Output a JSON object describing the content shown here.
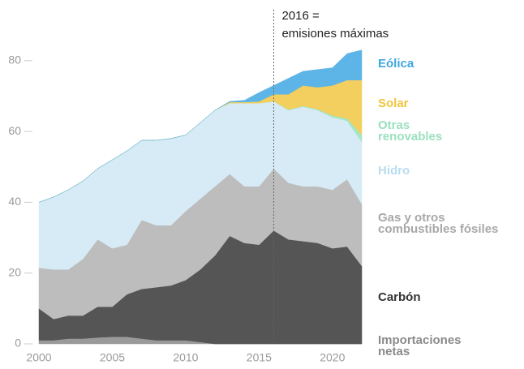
{
  "chart_data": {
    "type": "stacked_area",
    "x": [
      2000,
      2001,
      2002,
      2003,
      2004,
      2005,
      2006,
      2007,
      2008,
      2009,
      2010,
      2011,
      2012,
      2013,
      2014,
      2015,
      2016,
      2017,
      2018,
      2019,
      2020,
      2021,
      2022
    ],
    "xlim": [
      2000,
      2022
    ],
    "xticks": [
      2000,
      2005,
      2010,
      2015,
      2020
    ],
    "ylim": [
      0,
      85
    ],
    "yticks": [
      0,
      20,
      40,
      60,
      80
    ],
    "series": [
      {
        "name": "Importaciones netas",
        "color": "#9a9a9a",
        "label_color": "#8a8a8a",
        "values": [
          1,
          1,
          1.5,
          1.5,
          1.8,
          2,
          2,
          1.5,
          1,
          1,
          1,
          0.5,
          0,
          0,
          0,
          0,
          0,
          0,
          0,
          0,
          0,
          0,
          0
        ]
      },
      {
        "name": "Carbón",
        "color": "#555555",
        "label_color": "#333333",
        "values": [
          9,
          6,
          6.5,
          6.5,
          8.7,
          8.5,
          12,
          14,
          15,
          15.5,
          17,
          20.5,
          25,
          30.5,
          28.5,
          28,
          32,
          29.5,
          29,
          28.5,
          27,
          27.5,
          22
        ]
      },
      {
        "name": "Gas y otros combustibles fósiles",
        "color": "#bdbdbd",
        "label_color": "#a8a8a8",
        "values": [
          11.5,
          14,
          13,
          16,
          19,
          16.5,
          14,
          19.5,
          17.5,
          17,
          19.5,
          20,
          19.5,
          17.5,
          16,
          16.5,
          17.5,
          16,
          15.5,
          16,
          16.5,
          19,
          17.5
        ]
      },
      {
        "name": "Hidro",
        "color": "#d6ebf6",
        "label_color": "#b9dcf0",
        "values": [
          18.5,
          20.5,
          22.5,
          22,
          20,
          25,
          26.5,
          22.5,
          24,
          24.5,
          21.5,
          21.5,
          21.5,
          20,
          23.5,
          23.5,
          19,
          20.5,
          22.5,
          21.5,
          20.5,
          16.5,
          17.5
        ]
      },
      {
        "name": "Otras renovables",
        "color": "#a6e6c6",
        "label_color": "#9be0bf",
        "values": [
          0,
          0,
          0,
          0,
          0,
          0,
          0,
          0,
          0,
          0,
          0,
          0,
          0,
          0,
          0,
          0,
          0,
          0.2,
          0.2,
          0.3,
          0.5,
          0.7,
          2
        ]
      },
      {
        "name": "Solar",
        "color": "#f2cf5e",
        "label_color": "#f0c43c",
        "values": [
          0,
          0,
          0,
          0,
          0,
          0,
          0,
          0,
          0,
          0,
          0,
          0,
          0,
          0.3,
          0.3,
          0.5,
          2,
          4.3,
          5.8,
          6.2,
          8.5,
          10.8,
          15.5
        ]
      },
      {
        "name": "Eólica",
        "color": "#5db4e6",
        "label_color": "#3ea6e0",
        "values": [
          0,
          0,
          0,
          0,
          0,
          0,
          0,
          0,
          0,
          0,
          0,
          0,
          0,
          0.2,
          0.5,
          2.5,
          2.5,
          4.5,
          4,
          5,
          5,
          7.5,
          8.5
        ]
      }
    ],
    "annotation": {
      "x": 2016,
      "lines": [
        "2016 =",
        "emisiones máximas"
      ]
    }
  }
}
